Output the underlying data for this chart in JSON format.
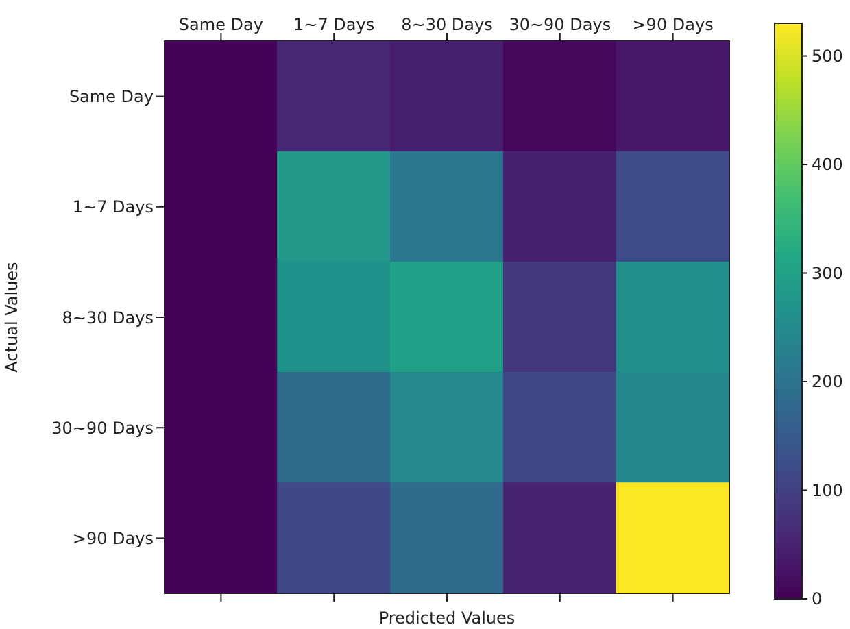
{
  "chart_data": {
    "type": "heatmap",
    "xlabel": "Predicted Values",
    "ylabel": "Actual Values",
    "categories": [
      "Same Day",
      "1~7 Days",
      "8~30 Days",
      "30~90 Days",
      ">90 Days"
    ],
    "y_categories": [
      "Same Day",
      "1~7 Days",
      "8~30 Days",
      "30~90 Days",
      ">90 Days"
    ],
    "cells": [
      [
        3,
        60,
        45,
        10,
        35
      ],
      [
        3,
        280,
        210,
        45,
        120
      ],
      [
        3,
        265,
        300,
        85,
        260
      ],
      [
        3,
        185,
        245,
        115,
        240
      ],
      [
        3,
        115,
        185,
        50,
        530
      ]
    ],
    "clim": [
      0,
      530
    ],
    "cticks": [
      0,
      100,
      200,
      300,
      400,
      500
    ]
  }
}
